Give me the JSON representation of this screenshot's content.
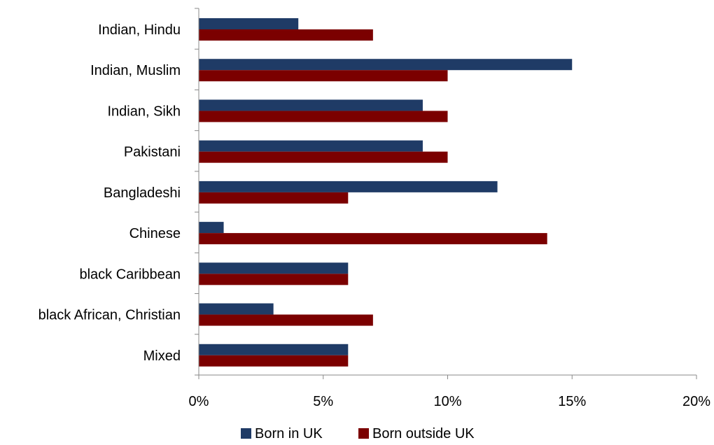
{
  "chart_data": {
    "type": "bar",
    "orientation": "horizontal",
    "categories": [
      "Indian, Hindu",
      "Indian, Muslim",
      "Indian, Sikh",
      "Pakistani",
      "Bangladeshi",
      "Chinese",
      "black Caribbean",
      "black African, Christian",
      "Mixed"
    ],
    "series": [
      {
        "name": "Born in UK",
        "color": "#1F3B66",
        "values": [
          4,
          15,
          9,
          9,
          12,
          1,
          6,
          3,
          6
        ]
      },
      {
        "name": "Born outside UK",
        "color": "#7B0000",
        "values": [
          7,
          10,
          10,
          10,
          6,
          14,
          6,
          7,
          6
        ]
      }
    ],
    "xlim": [
      0,
      20
    ],
    "x_ticks": [
      "0%",
      "5%",
      "10%",
      "15%",
      "20%"
    ],
    "xlabel": "",
    "ylabel": "",
    "grid": false,
    "legend_position": "bottom"
  }
}
